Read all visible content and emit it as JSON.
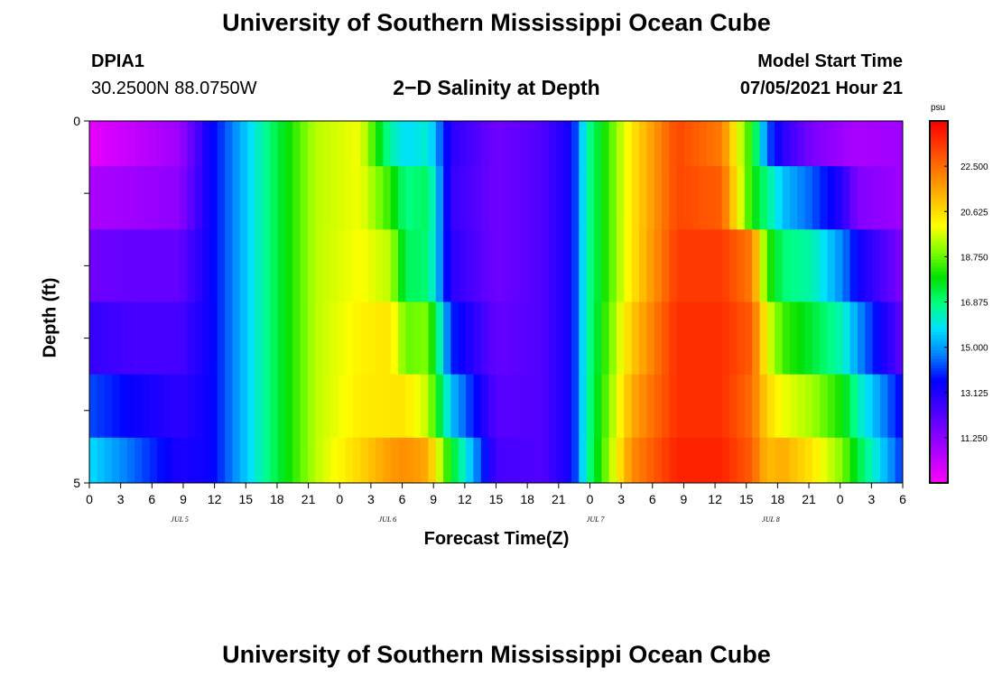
{
  "header": {
    "title": "University of Southern Mississippi Ocean Cube",
    "station": "DPIA1",
    "coords": "30.2500N  88.0750W",
    "plot_title": "2−D Salinity at Depth",
    "model_start_label": "Model Start Time",
    "model_start_value": "07/05/2021 Hour 21"
  },
  "footer": {
    "title": "University of Southern Mississippi Ocean Cube"
  },
  "colors": {
    "scale": [
      "#ff00ff",
      "#c000ff",
      "#8000ff",
      "#4000ff",
      "#0000ff",
      "#0080ff",
      "#00e0ff",
      "#00ff80",
      "#00e000",
      "#80ff00",
      "#ffff00",
      "#ffc000",
      "#ff8000",
      "#ff4000",
      "#ff0000"
    ]
  },
  "chart_data": {
    "type": "heatmap",
    "title": "2−D Salinity at Depth",
    "xlabel": "Forecast Time(Z)",
    "ylabel": "Depth (ft)",
    "ylim": [
      0,
      5
    ],
    "y_ticks": [
      "0",
      "5"
    ],
    "x_ticks": [
      "0",
      "3",
      "6",
      "9",
      "12",
      "15",
      "18",
      "21",
      "0",
      "3",
      "6",
      "9",
      "12",
      "15",
      "18",
      "21",
      "0",
      "3",
      "6",
      "9",
      "12",
      "15",
      "18",
      "21",
      "0",
      "3",
      "6"
    ],
    "day_labels": [
      "JUL 5",
      "JUL 6",
      "JUL 7",
      "JUL 8"
    ],
    "colorbar": {
      "unit": "psu",
      "range": [
        9.375,
        24.375
      ],
      "labels": [
        "22.500",
        "20.625",
        "18.750",
        "16.875",
        "15.000",
        "13.125",
        "11.250"
      ]
    },
    "x_hours": [
      0,
      6,
      12,
      16,
      18,
      24,
      30,
      36,
      40,
      42,
      45,
      48,
      54,
      60,
      64,
      66,
      72,
      78,
      84,
      88,
      90,
      92,
      96,
      100,
      102,
      108
    ],
    "depths_ft": [
      0.25,
      1.0,
      2.0,
      3.0,
      4.0,
      4.75
    ],
    "salinity_psu": [
      [
        9.8,
        10.4,
        11.0,
        13.5,
        14.3,
        17.0,
        19.5,
        20.0,
        16.5,
        15.8,
        16.2,
        13.0,
        11.8,
        12.3,
        13.4,
        16.5,
        20.5,
        23.2,
        22.3,
        18.0,
        14.5,
        13.0,
        11.6,
        11.0,
        10.8,
        11.0
      ],
      [
        10.8,
        11.0,
        11.3,
        13.5,
        14.3,
        17.0,
        19.5,
        20.0,
        18.3,
        16.8,
        17.2,
        12.8,
        11.8,
        12.3,
        13.4,
        16.5,
        20.5,
        23.2,
        22.8,
        18.0,
        16.8,
        15.5,
        14.4,
        13.0,
        11.5,
        11.0
      ],
      [
        11.8,
        12.0,
        12.0,
        13.5,
        14.3,
        17.0,
        19.5,
        20.1,
        19.5,
        17.2,
        17.0,
        13.0,
        11.8,
        12.3,
        13.4,
        16.5,
        20.5,
        23.4,
        23.4,
        22.3,
        18.5,
        17.0,
        16.5,
        14.8,
        13.5,
        11.5
      ],
      [
        12.8,
        12.5,
        12.5,
        13.5,
        14.3,
        17.0,
        19.5,
        20.3,
        20.5,
        18.8,
        19.0,
        14.0,
        12.0,
        12.3,
        13.4,
        16.5,
        21.0,
        23.6,
        23.6,
        22.8,
        20.0,
        18.5,
        17.5,
        16.4,
        15.0,
        12.0
      ],
      [
        14.3,
        13.5,
        12.9,
        13.5,
        14.3,
        17.0,
        19.5,
        20.4,
        20.5,
        20.5,
        19.5,
        15.5,
        12.2,
        12.3,
        13.4,
        16.5,
        21.5,
        23.6,
        23.6,
        22.5,
        20.8,
        20.0,
        19.3,
        18.0,
        16.5,
        13.5
      ],
      [
        15.8,
        14.5,
        13.2,
        13.5,
        14.3,
        17.0,
        19.5,
        20.8,
        21.8,
        22.0,
        21.5,
        17.8,
        12.5,
        12.3,
        13.4,
        16.5,
        22.0,
        23.8,
        23.8,
        22.8,
        21.2,
        21.5,
        20.5,
        19.0,
        17.5,
        14.0
      ]
    ]
  }
}
